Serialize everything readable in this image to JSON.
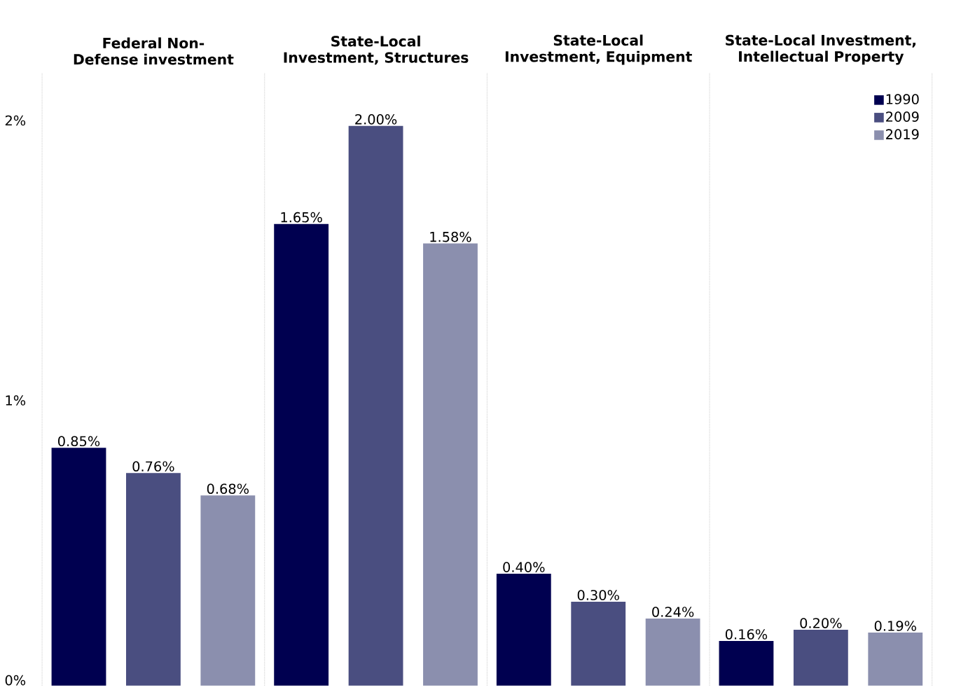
{
  "chart_data": {
    "type": "bar",
    "categories": [
      "Federal Non-Defense investment",
      "State-Local Investment, Structures",
      "State-Local Investment, Equipment",
      "State-Local Investment, Intellectual Property"
    ],
    "series": [
      {
        "name": "1990",
        "color": "#000050",
        "values": [
          0.85,
          1.65,
          0.4,
          0.16
        ],
        "value_labels": [
          "0.85%",
          "1.65%",
          "0.40%",
          "0.16%"
        ]
      },
      {
        "name": "2009",
        "color": "#4a4e80",
        "values": [
          0.76,
          2.0,
          0.3,
          0.2
        ],
        "value_labels": [
          "0.76%",
          "2.00%",
          "0.30%",
          "0.20%"
        ]
      },
      {
        "name": "2019",
        "color": "#8b8fae",
        "values": [
          0.68,
          1.58,
          0.24,
          0.19
        ],
        "value_labels": [
          "0.68%",
          "1.58%",
          "0.24%",
          "0.19%"
        ]
      }
    ],
    "ylim": [
      0,
      2.19
    ],
    "yticks": [
      {
        "value": 0,
        "label": "0%"
      },
      {
        "value": 1,
        "label": "1%"
      },
      {
        "value": 2,
        "label": "2%"
      }
    ],
    "grid": "x",
    "legend": "top right"
  }
}
